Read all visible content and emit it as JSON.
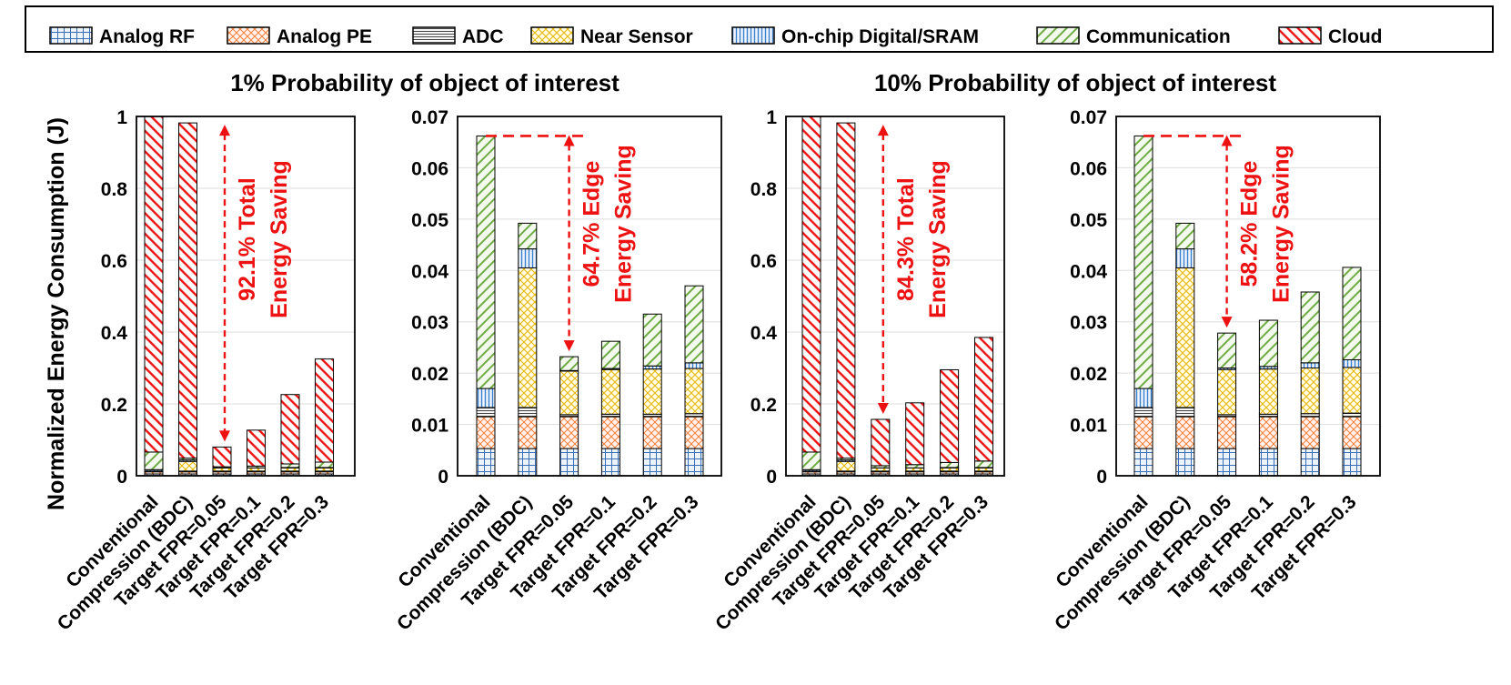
{
  "legend": [
    "Analog RF",
    "Analog PE",
    "ADC",
    "Near Sensor",
    "On-chip Digital/SRAM",
    "Communication",
    "Cloud"
  ],
  "components": [
    {
      "name": "Analog RF",
      "edge": "#3a6fb7",
      "fill": "#eef4fb",
      "pattern": "grid"
    },
    {
      "name": "Analog PE",
      "edge": "#f07e3a",
      "fill": "#fff4ec",
      "pattern": "cross"
    },
    {
      "name": "ADC",
      "edge": "#444444",
      "fill": "#f7f7f7",
      "pattern": "hlines"
    },
    {
      "name": "Near Sensor",
      "edge": "#e4b600",
      "fill": "#fffbe6",
      "pattern": "cross"
    },
    {
      "name": "On-chip Digital/SRAM",
      "edge": "#3b7ec9",
      "fill": "#eef5ff",
      "pattern": "vlines"
    },
    {
      "name": "Communication",
      "edge": "#6fac46",
      "fill": "#f4faee",
      "pattern": "diag"
    },
    {
      "name": "Cloud",
      "edge": "#ee1111",
      "fill": "#ffffff",
      "pattern": "diag2"
    }
  ],
  "y_axis_label": "Normalized Energy Consumption (J)",
  "groups": [
    {
      "title": "1% Probability of object of interest"
    },
    {
      "title": "10% Probability of object of interest"
    }
  ],
  "annotations": [
    {
      "panel": 0,
      "lines": [
        "92.1% Total",
        "Energy Saving"
      ]
    },
    {
      "panel": 1,
      "lines": [
        "64.7% Edge",
        "Energy Saving"
      ]
    },
    {
      "panel": 2,
      "lines": [
        "84.3% Total",
        "Energy Saving"
      ]
    },
    {
      "panel": 3,
      "lines": [
        "58.2% Edge",
        "Energy Saving"
      ]
    }
  ],
  "chart_data": [
    {
      "type": "bar",
      "stacked": true,
      "title": "1% Probability of object of interest",
      "ylabel": "Normalized Energy Consumption (J)",
      "categories": [
        "Conventional",
        "Compression (BDC)",
        "Target FPR=0.05",
        "Target FPR=0.1",
        "Target FPR=0.2",
        "Target FPR=0.3"
      ],
      "ylim": [
        0,
        1
      ],
      "yticks": [
        "0",
        "0.2",
        "0.4",
        "0.6",
        "0.8",
        "1"
      ],
      "series": [
        {
          "name": "Analog RF",
          "values": [
            0.005,
            0.005,
            0.005,
            0.005,
            0.005,
            0.005
          ]
        },
        {
          "name": "Analog PE",
          "values": [
            0.006,
            0.006,
            0.006,
            0.006,
            0.006,
            0.006
          ]
        },
        {
          "name": "ADC",
          "values": [
            0.002,
            0.002,
            0.002,
            0.002,
            0.002,
            0.002
          ]
        },
        {
          "name": "Near Sensor",
          "values": [
            0,
            0.027,
            0.009,
            0.009,
            0.009,
            0.009
          ]
        },
        {
          "name": "On-chip Digital/SRAM",
          "values": [
            0.004,
            0.004,
            0,
            0,
            0.001,
            0.001
          ]
        },
        {
          "name": "Communication",
          "values": [
            0.049,
            0.005,
            0.003,
            0.005,
            0.01,
            0.015
          ]
        },
        {
          "name": "Cloud",
          "values": [
            0.934,
            0.933,
            0.055,
            0.1,
            0.193,
            0.287
          ]
        }
      ],
      "annotation": "92.1% Total Energy Saving"
    },
    {
      "type": "bar",
      "stacked": true,
      "title": "1% Probability of object of interest",
      "categories": [
        "Conventional",
        "Compression (BDC)",
        "Target FPR=0.05",
        "Target FPR=0.1",
        "Target FPR=0.2",
        "Target FPR=0.3"
      ],
      "ylim": [
        0,
        0.07
      ],
      "yticks": [
        "0",
        "0.01",
        "0.02",
        "0.03",
        "0.04",
        "0.05",
        "0.06",
        "0.07"
      ],
      "series": [
        {
          "name": "Analog RF",
          "values": [
            0.0053,
            0.0053,
            0.0053,
            0.0053,
            0.0053,
            0.0053
          ]
        },
        {
          "name": "Analog PE",
          "values": [
            0.0062,
            0.0062,
            0.0062,
            0.0062,
            0.0062,
            0.0062
          ]
        },
        {
          "name": "ADC",
          "values": [
            0.0018,
            0.0018,
            0.0004,
            0.0005,
            0.0005,
            0.0006
          ]
        },
        {
          "name": "Near Sensor",
          "values": [
            0,
            0.0272,
            0.0085,
            0.0087,
            0.0088,
            0.0088
          ]
        },
        {
          "name": "On-chip Digital/SRAM",
          "values": [
            0.0037,
            0.0037,
            0.0001,
            0.0002,
            0.0006,
            0.0011
          ]
        },
        {
          "name": "Communication",
          "values": [
            0.0492,
            0.005,
            0.0027,
            0.0053,
            0.0101,
            0.015
          ]
        }
      ],
      "annotation": "64.7% Edge Energy Saving"
    },
    {
      "type": "bar",
      "stacked": true,
      "title": "10% Probability of object of interest",
      "categories": [
        "Conventional",
        "Compression (BDC)",
        "Target FPR=0.05",
        "Target FPR=0.1",
        "Target FPR=0.2",
        "Target FPR=0.3"
      ],
      "ylim": [
        0,
        1
      ],
      "yticks": [
        "0",
        "0.2",
        "0.4",
        "0.6",
        "0.8",
        "1"
      ],
      "series": [
        {
          "name": "Analog RF",
          "values": [
            0.005,
            0.005,
            0.005,
            0.005,
            0.005,
            0.005
          ]
        },
        {
          "name": "Analog PE",
          "values": [
            0.006,
            0.006,
            0.006,
            0.006,
            0.006,
            0.006
          ]
        },
        {
          "name": "ADC",
          "values": [
            0.002,
            0.002,
            0.002,
            0.002,
            0.002,
            0.002
          ]
        },
        {
          "name": "Near Sensor",
          "values": [
            0,
            0.027,
            0.009,
            0.009,
            0.009,
            0.009
          ]
        },
        {
          "name": "On-chip Digital/SRAM",
          "values": [
            0.004,
            0.004,
            0,
            0,
            0.001,
            0.001
          ]
        },
        {
          "name": "Communication",
          "values": [
            0.049,
            0.005,
            0.006,
            0.009,
            0.014,
            0.018
          ]
        },
        {
          "name": "Cloud",
          "values": [
            0.934,
            0.933,
            0.129,
            0.172,
            0.258,
            0.344
          ]
        }
      ],
      "annotation": "84.3% Total Energy Saving"
    },
    {
      "type": "bar",
      "stacked": true,
      "title": "10% Probability of object of interest",
      "categories": [
        "Conventional",
        "Compression (BDC)",
        "Target FPR=0.05",
        "Target FPR=0.1",
        "Target FPR=0.2",
        "Target FPR=0.3"
      ],
      "ylim": [
        0,
        0.07
      ],
      "yticks": [
        "0",
        "0.01",
        "0.02",
        "0.03",
        "0.04",
        "0.05",
        "0.06",
        "0.07"
      ],
      "series": [
        {
          "name": "Analog RF",
          "values": [
            0.0053,
            0.0053,
            0.0053,
            0.0053,
            0.0053,
            0.0053
          ]
        },
        {
          "name": "Analog PE",
          "values": [
            0.0062,
            0.0062,
            0.0062,
            0.0062,
            0.0062,
            0.0062
          ]
        },
        {
          "name": "ADC",
          "values": [
            0.0018,
            0.0018,
            0.0004,
            0.0005,
            0.0006,
            0.0007
          ]
        },
        {
          "name": "Near Sensor",
          "values": [
            0,
            0.0272,
            0.0088,
            0.0088,
            0.0089,
            0.0089
          ]
        },
        {
          "name": "On-chip Digital/SRAM",
          "values": [
            0.0037,
            0.0037,
            0.0003,
            0.0005,
            0.001,
            0.0015
          ]
        },
        {
          "name": "Communication",
          "values": [
            0.0492,
            0.005,
            0.0068,
            0.009,
            0.0138,
            0.018
          ]
        }
      ],
      "annotation": "58.2% Edge Energy Saving"
    }
  ]
}
